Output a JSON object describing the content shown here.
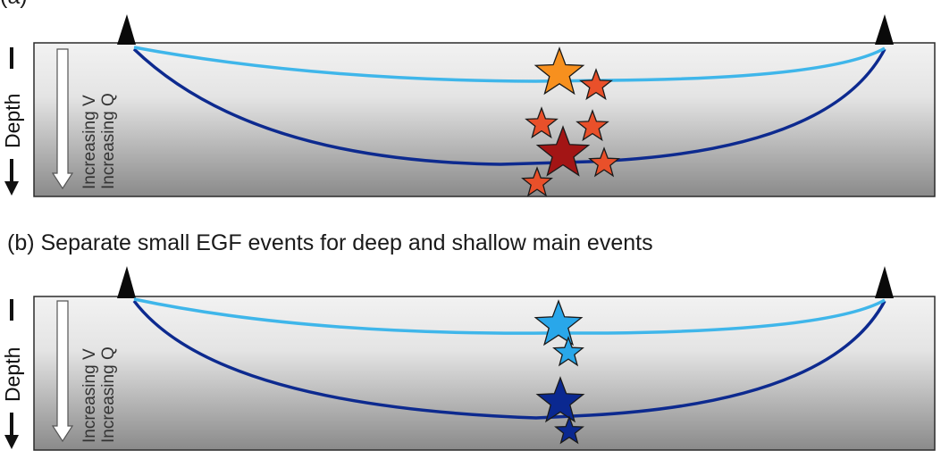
{
  "panel_a": {
    "caption": "(a)",
    "depth_label": "Depth",
    "arrow_label_1": "Increasing V",
    "arrow_label_2": "Increasing Q",
    "shallow_path_color": "#3fb6ea",
    "deep_path_color": "#0d2a8f",
    "stars": [
      {
        "role": "shallow-main",
        "color": "#f7901e"
      },
      {
        "role": "egf",
        "color": "#e9502a"
      },
      {
        "role": "egf",
        "color": "#e9502a"
      },
      {
        "role": "egf",
        "color": "#e9502a"
      },
      {
        "role": "deep-main",
        "color": "#a31515"
      },
      {
        "role": "egf",
        "color": "#e9502a"
      },
      {
        "role": "egf",
        "color": "#e9502a"
      }
    ]
  },
  "panel_b": {
    "caption": "(b) Separate small EGF events for deep and shallow main events",
    "depth_label": "Depth",
    "arrow_label_1": "Increasing V",
    "arrow_label_2": "Increasing Q",
    "shallow_path_color": "#3fb6ea",
    "deep_path_color": "#0d2a8f",
    "stars": [
      {
        "role": "shallow-main",
        "color": "#29a7ea"
      },
      {
        "role": "shallow-egf",
        "color": "#29a7ea"
      },
      {
        "role": "deep-main",
        "color": "#0a2890"
      },
      {
        "role": "deep-egf",
        "color": "#0a2890"
      }
    ]
  },
  "icons": [
    "station-triangle-icon",
    "star-icon",
    "down-arrow-icon"
  ]
}
